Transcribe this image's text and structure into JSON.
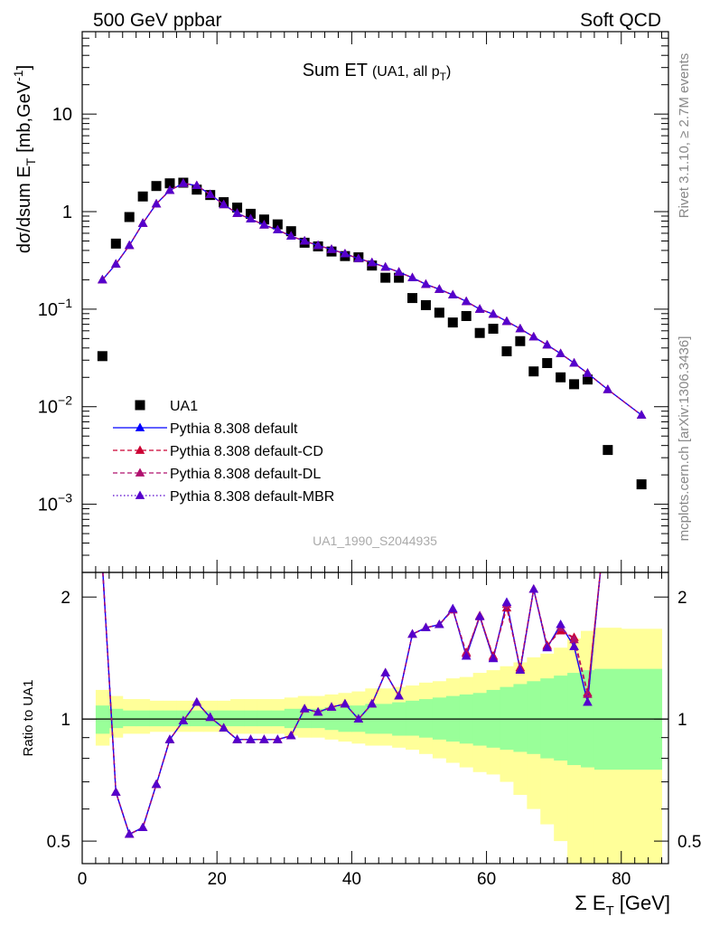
{
  "header": {
    "left": "500 GeV ppbar",
    "right": "Soft QCD"
  },
  "side": {
    "rivet": "Rivet 3.1.10, ≥ 2.7M events",
    "mcplots": "mcplots.cern.ch [arXiv:1306.3436]"
  },
  "chart_data": [
    {
      "type": "scatter",
      "title_main": "Sum ET",
      "title_sub": "(UA1, all p",
      "title_sub_index": "T",
      "title_sub_close": ")",
      "ylabel_main": "dσ/dsum E",
      "ylabel_index": "T",
      "ylabel_units": "[mb,GeV",
      "ylabel_exp": "-1",
      "ylabel_close": "]",
      "watermark": "UA1_1990_S2044935",
      "yscale": "log",
      "xlim": [
        0,
        87
      ],
      "ylim": [
        0.0002,
        70
      ],
      "ytick_labels": [
        {
          "v": 10,
          "base": "10",
          "exp": ""
        },
        {
          "v": 1,
          "base": "1",
          "exp": ""
        },
        {
          "v": 0.1,
          "base": "10",
          "exp": "−1"
        },
        {
          "v": 0.01,
          "base": "10",
          "exp": "−2"
        },
        {
          "v": 0.001,
          "base": "10",
          "exp": "−3"
        }
      ],
      "legend_position": "bottom-left",
      "series": [
        {
          "name": "UA1",
          "color": "#000000",
          "marker": "square",
          "x": [
            3,
            5,
            7,
            9,
            11,
            13,
            15,
            17,
            19,
            21,
            23,
            25,
            27,
            29,
            31,
            33,
            35,
            37,
            39,
            41,
            43,
            45,
            47,
            49,
            51,
            53,
            55,
            57,
            59,
            61,
            63,
            65,
            67,
            69,
            71,
            73,
            75,
            78,
            83
          ],
          "y": [
            0.033,
            0.47,
            0.88,
            1.43,
            1.83,
            1.95,
            1.98,
            1.68,
            1.48,
            1.25,
            1.1,
            0.95,
            0.83,
            0.74,
            0.63,
            0.48,
            0.44,
            0.39,
            0.35,
            0.34,
            0.28,
            0.21,
            0.21,
            0.13,
            0.11,
            0.092,
            0.073,
            0.085,
            0.057,
            0.063,
            0.037,
            0.047,
            0.023,
            0.028,
            0.02,
            0.017,
            0.019,
            0.0036,
            0.0016
          ]
        },
        {
          "name": "Pythia 8.308 default",
          "color": "#0000ff",
          "marker": "triangle",
          "line": "solid",
          "x": [
            3,
            5,
            7,
            9,
            11,
            13,
            15,
            17,
            19,
            21,
            23,
            25,
            27,
            29,
            31,
            33,
            35,
            37,
            39,
            41,
            43,
            45,
            47,
            49,
            51,
            53,
            55,
            57,
            59,
            61,
            63,
            65,
            67,
            69,
            71,
            73,
            75,
            78,
            83
          ],
          "y": [
            0.2,
            0.29,
            0.45,
            0.76,
            1.2,
            1.65,
            1.95,
            1.85,
            1.5,
            1.18,
            0.96,
            0.84,
            0.73,
            0.65,
            0.56,
            0.5,
            0.45,
            0.41,
            0.37,
            0.33,
            0.3,
            0.27,
            0.24,
            0.21,
            0.18,
            0.16,
            0.14,
            0.12,
            0.1,
            0.089,
            0.075,
            0.063,
            0.052,
            0.043,
            0.035,
            0.028,
            0.022,
            0.015,
            0.0082
          ]
        },
        {
          "name": "Pythia 8.308 default-CD",
          "color": "#cc0033",
          "marker": "triangle",
          "line": "dashed",
          "x": [
            3,
            5,
            7,
            9,
            11,
            13,
            15,
            17,
            19,
            21,
            23,
            25,
            27,
            29,
            31,
            33,
            35,
            37,
            39,
            41,
            43,
            45,
            47,
            49,
            51,
            53,
            55,
            57,
            59,
            61,
            63,
            65,
            67,
            69,
            71,
            73,
            75,
            78,
            83
          ],
          "y": [
            0.2,
            0.29,
            0.45,
            0.76,
            1.2,
            1.65,
            1.95,
            1.85,
            1.5,
            1.18,
            0.96,
            0.84,
            0.73,
            0.65,
            0.56,
            0.5,
            0.45,
            0.41,
            0.37,
            0.33,
            0.3,
            0.27,
            0.24,
            0.21,
            0.18,
            0.16,
            0.14,
            0.12,
            0.1,
            0.089,
            0.075,
            0.063,
            0.052,
            0.043,
            0.035,
            0.028,
            0.022,
            0.015,
            0.0082
          ]
        },
        {
          "name": "Pythia 8.308 default-DL",
          "color": "#b0106e",
          "marker": "triangle",
          "line": "dashed",
          "x": [
            3,
            5,
            7,
            9,
            11,
            13,
            15,
            17,
            19,
            21,
            23,
            25,
            27,
            29,
            31,
            33,
            35,
            37,
            39,
            41,
            43,
            45,
            47,
            49,
            51,
            53,
            55,
            57,
            59,
            61,
            63,
            65,
            67,
            69,
            71,
            73,
            75,
            78,
            83
          ],
          "y": [
            0.2,
            0.29,
            0.45,
            0.76,
            1.2,
            1.65,
            1.95,
            1.85,
            1.5,
            1.18,
            0.96,
            0.84,
            0.73,
            0.65,
            0.56,
            0.5,
            0.45,
            0.41,
            0.37,
            0.33,
            0.3,
            0.27,
            0.24,
            0.21,
            0.18,
            0.16,
            0.14,
            0.12,
            0.1,
            0.089,
            0.075,
            0.063,
            0.052,
            0.043,
            0.035,
            0.028,
            0.022,
            0.015,
            0.0082
          ]
        },
        {
          "name": "Pythia 8.308 default-MBR",
          "color": "#5500cc",
          "marker": "triangle",
          "line": "dotted",
          "x": [
            3,
            5,
            7,
            9,
            11,
            13,
            15,
            17,
            19,
            21,
            23,
            25,
            27,
            29,
            31,
            33,
            35,
            37,
            39,
            41,
            43,
            45,
            47,
            49,
            51,
            53,
            55,
            57,
            59,
            61,
            63,
            65,
            67,
            69,
            71,
            73,
            75,
            78,
            83
          ],
          "y": [
            0.2,
            0.29,
            0.45,
            0.76,
            1.2,
            1.65,
            1.95,
            1.85,
            1.5,
            1.18,
            0.96,
            0.84,
            0.73,
            0.65,
            0.56,
            0.5,
            0.45,
            0.41,
            0.37,
            0.33,
            0.3,
            0.27,
            0.24,
            0.21,
            0.18,
            0.16,
            0.14,
            0.12,
            0.1,
            0.089,
            0.075,
            0.063,
            0.052,
            0.043,
            0.035,
            0.028,
            0.022,
            0.015,
            0.0082
          ]
        }
      ]
    },
    {
      "type": "line",
      "ylabel": "Ratio to UA1",
      "xlabel_prefix": "Σ E",
      "xlabel_index": "T",
      "xlabel_units": "[GeV]",
      "xlim": [
        0,
        87
      ],
      "ylim": [
        0.44,
        2.3
      ],
      "yscale": "log",
      "xtick_labels": [
        "0",
        "20",
        "40",
        "60",
        "80"
      ],
      "ytick_labels": [
        "0.5",
        "1",
        "2"
      ],
      "reference_line": 1,
      "bands": {
        "bins": [
          2,
          4,
          6,
          8,
          10,
          12,
          14,
          16,
          18,
          20,
          22,
          24,
          26,
          28,
          30,
          32,
          34,
          36,
          38,
          40,
          42,
          44,
          46,
          48,
          50,
          52,
          54,
          56,
          58,
          60,
          62,
          64,
          66,
          68,
          70,
          72,
          74,
          76,
          80,
          86
        ],
        "yellow_color": "#ffff99",
        "green_color": "#99ff99",
        "yellow_lo": [
          0.86,
          0.9,
          0.92,
          0.92,
          0.93,
          0.93,
          0.93,
          0.93,
          0.93,
          0.93,
          0.92,
          0.92,
          0.92,
          0.92,
          0.91,
          0.9,
          0.9,
          0.89,
          0.88,
          0.87,
          0.86,
          0.86,
          0.85,
          0.84,
          0.82,
          0.8,
          0.78,
          0.76,
          0.74,
          0.73,
          0.7,
          0.65,
          0.6,
          0.55,
          0.5,
          0.38,
          0.4,
          0.34,
          0.34
        ],
        "yellow_hi": [
          1.18,
          1.14,
          1.12,
          1.12,
          1.11,
          1.11,
          1.11,
          1.11,
          1.11,
          1.11,
          1.12,
          1.12,
          1.12,
          1.12,
          1.13,
          1.14,
          1.14,
          1.15,
          1.16,
          1.17,
          1.19,
          1.19,
          1.2,
          1.21,
          1.23,
          1.24,
          1.26,
          1.27,
          1.3,
          1.32,
          1.35,
          1.38,
          1.42,
          1.45,
          1.5,
          1.58,
          1.65,
          1.68,
          1.67
        ],
        "green_lo": [
          0.92,
          0.95,
          0.96,
          0.96,
          0.96,
          0.96,
          0.96,
          0.96,
          0.96,
          0.96,
          0.96,
          0.96,
          0.96,
          0.96,
          0.95,
          0.95,
          0.95,
          0.94,
          0.93,
          0.93,
          0.92,
          0.92,
          0.91,
          0.91,
          0.9,
          0.89,
          0.88,
          0.87,
          0.86,
          0.85,
          0.84,
          0.83,
          0.82,
          0.8,
          0.79,
          0.77,
          0.76,
          0.75,
          0.75
        ],
        "green_hi": [
          1.08,
          1.06,
          1.05,
          1.05,
          1.05,
          1.05,
          1.05,
          1.05,
          1.05,
          1.05,
          1.05,
          1.05,
          1.05,
          1.05,
          1.06,
          1.06,
          1.06,
          1.07,
          1.08,
          1.08,
          1.09,
          1.09,
          1.1,
          1.11,
          1.12,
          1.13,
          1.14,
          1.15,
          1.16,
          1.18,
          1.2,
          1.22,
          1.24,
          1.26,
          1.28,
          1.3,
          1.32,
          1.33,
          1.33
        ]
      },
      "series": [
        {
          "name": "Pythia 8.308 default",
          "color": "#0000ff",
          "x": [
            3,
            5,
            7,
            9,
            11,
            13,
            15,
            17,
            19,
            21,
            23,
            25,
            27,
            29,
            31,
            33,
            35,
            37,
            39,
            41,
            43,
            45,
            47,
            49,
            51,
            53,
            55,
            57,
            59,
            61,
            63,
            65,
            67,
            69,
            71,
            73,
            75,
            77
          ],
          "y": [
            2.4,
            0.66,
            0.52,
            0.54,
            0.69,
            0.89,
            0.99,
            1.1,
            1.01,
            0.95,
            0.89,
            0.89,
            0.89,
            0.89,
            0.91,
            1.06,
            1.04,
            1.07,
            1.09,
            1.0,
            1.09,
            1.3,
            1.14,
            1.62,
            1.68,
            1.71,
            1.87,
            1.43,
            1.79,
            1.41,
            1.94,
            1.32,
            2.09,
            1.5,
            1.71,
            1.51,
            1.1,
            2.4
          ]
        },
        {
          "name": "Pythia 8.308 default-CD",
          "color": "#cc0033",
          "x": [
            3,
            5,
            7,
            9,
            11,
            13,
            15,
            17,
            19,
            21,
            23,
            25,
            27,
            29,
            31,
            33,
            35,
            37,
            39,
            41,
            43,
            45,
            47,
            49,
            51,
            53,
            55,
            57,
            59,
            61,
            63,
            65,
            67,
            69,
            71,
            73,
            75,
            77
          ],
          "y": [
            2.4,
            0.66,
            0.52,
            0.54,
            0.69,
            0.89,
            0.99,
            1.1,
            1.01,
            0.95,
            0.89,
            0.89,
            0.89,
            0.89,
            0.91,
            1.06,
            1.04,
            1.07,
            1.09,
            1.0,
            1.09,
            1.3,
            1.14,
            1.62,
            1.68,
            1.71,
            1.86,
            1.46,
            1.79,
            1.43,
            1.88,
            1.34,
            2.09,
            1.52,
            1.65,
            1.59,
            1.16,
            2.4
          ]
        },
        {
          "name": "Pythia 8.308 default-DL",
          "color": "#b0106e",
          "x": [
            3,
            5,
            7,
            9,
            11,
            13,
            15,
            17,
            19,
            21,
            23,
            25,
            27,
            29,
            31,
            33,
            35,
            37,
            39,
            41,
            43,
            45,
            47,
            49,
            51,
            53,
            55,
            57,
            59,
            61,
            63,
            65,
            67,
            69,
            71,
            73,
            75,
            77
          ],
          "y": [
            2.4,
            0.66,
            0.52,
            0.54,
            0.69,
            0.89,
            0.99,
            1.1,
            1.01,
            0.95,
            0.89,
            0.89,
            0.89,
            0.89,
            0.91,
            1.06,
            1.04,
            1.07,
            1.09,
            1.0,
            1.09,
            1.3,
            1.14,
            1.62,
            1.68,
            1.71,
            1.86,
            1.45,
            1.8,
            1.42,
            1.92,
            1.33,
            2.09,
            1.51,
            1.68,
            1.57,
            1.15,
            2.4
          ]
        },
        {
          "name": "Pythia 8.308 default-MBR",
          "color": "#5500cc",
          "x": [
            3,
            5,
            7,
            9,
            11,
            13,
            15,
            17,
            19,
            21,
            23,
            25,
            27,
            29,
            31,
            33,
            35,
            37,
            39,
            41,
            43,
            45,
            47,
            49,
            51,
            53,
            55,
            57,
            59,
            61,
            63,
            65,
            67,
            69,
            71,
            73,
            75,
            77
          ],
          "y": [
            2.4,
            0.66,
            0.52,
            0.54,
            0.69,
            0.89,
            0.99,
            1.1,
            1.01,
            0.95,
            0.89,
            0.89,
            0.89,
            0.89,
            0.91,
            1.06,
            1.04,
            1.07,
            1.09,
            1.0,
            1.09,
            1.3,
            1.14,
            1.62,
            1.68,
            1.71,
            1.87,
            1.43,
            1.79,
            1.41,
            1.94,
            1.32,
            2.09,
            1.5,
            1.71,
            1.51,
            1.1,
            2.4
          ]
        }
      ]
    }
  ]
}
